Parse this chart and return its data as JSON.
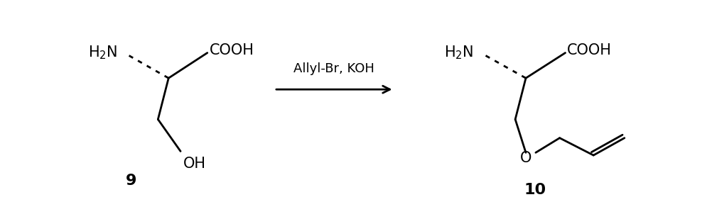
{
  "bg_color": "#ffffff",
  "fig_width": 10.02,
  "fig_height": 2.85,
  "dpi": 100,
  "arrow_label": "Allyl-Br, KOH",
  "compound9_label": "9",
  "compound10_label": "10"
}
